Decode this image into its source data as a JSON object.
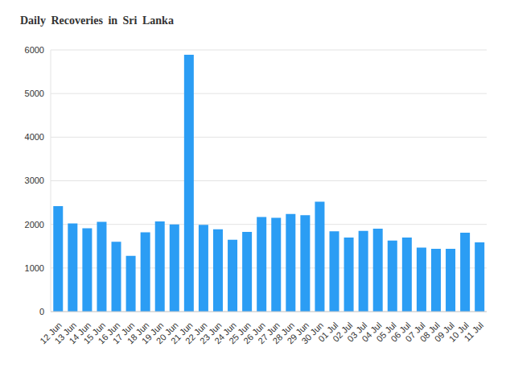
{
  "chart_data": {
    "type": "bar",
    "title": "Daily Recoveries in Sri Lanka",
    "categories": [
      "12 Jun",
      "13 Jun",
      "14 Jun",
      "15 Jun",
      "16 Jun",
      "17 Jun",
      "18 Jun",
      "19 Jun",
      "20 Jun",
      "21 Jun",
      "22 Jun",
      "23 Jun",
      "24 Jun",
      "25 Jun",
      "26 Jun",
      "27 Jun",
      "28 Jun",
      "29 Jun",
      "30 Jun",
      "01 Jul",
      "02 Jul",
      "03 Jul",
      "04 Jul",
      "05 Jul",
      "06 Jul",
      "07 Jul",
      "08 Jul",
      "09 Jul",
      "10 Jul",
      "11 Jul"
    ],
    "values": [
      2420,
      2020,
      1910,
      2060,
      1600,
      1280,
      1820,
      2070,
      2000,
      5890,
      1990,
      1890,
      1650,
      1830,
      2170,
      2150,
      2240,
      2210,
      2520,
      1840,
      1700,
      1850,
      1900,
      1630,
      1700,
      1470,
      1440,
      1440,
      1810,
      1590
    ],
    "color": "#2b9df4",
    "ylim": [
      0,
      6000
    ],
    "yticks": [
      0,
      1000,
      2000,
      3000,
      4000,
      5000,
      6000
    ],
    "grid": true
  }
}
